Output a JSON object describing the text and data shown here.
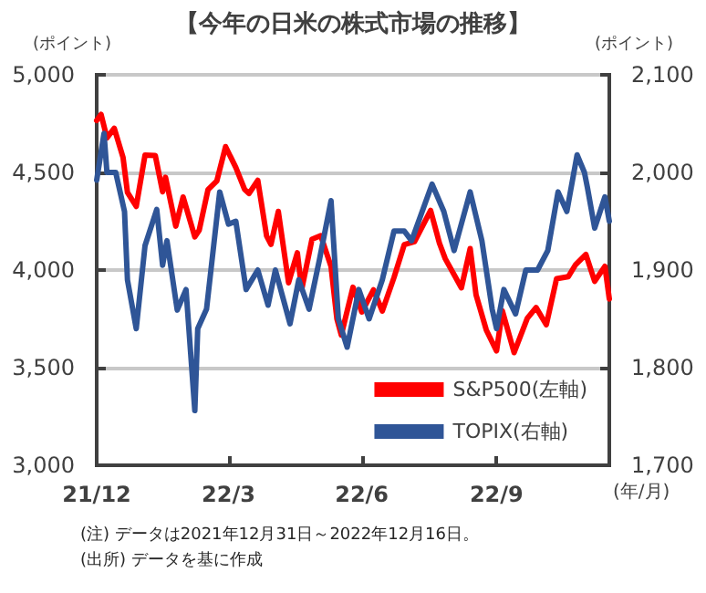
{
  "chart_data": {
    "type": "line",
    "title": "【今年の日米の株式市場の推移】",
    "ylabel": "(ポイント)",
    "y2label": "(ポイント)",
    "xlabel": "(年/月)",
    "annotations": [
      "(注) データは2021年12月31日～2022年12月16日。",
      "(出所) データを基に作成"
    ],
    "xlim": [
      "2021-12-31",
      "2022-12-16"
    ],
    "xticks": [
      {
        "value": "2021-12-31",
        "label": "21/12"
      },
      {
        "value": "2022-03-31",
        "label": "22/3"
      },
      {
        "value": "2022-06-30",
        "label": "22/6"
      },
      {
        "value": "2022-09-30",
        "label": "22/9"
      }
    ],
    "ylim": [
      3000,
      5000
    ],
    "yticks": [
      {
        "value": 3000,
        "label": "3,000"
      },
      {
        "value": 3500,
        "label": "3,500"
      },
      {
        "value": 4000,
        "label": "4,000"
      },
      {
        "value": 4500,
        "label": "4,500"
      },
      {
        "value": 5000,
        "label": "5,000"
      }
    ],
    "y2lim": [
      1700,
      2100
    ],
    "y2ticks": [
      {
        "value": 1700,
        "label": "1,700"
      },
      {
        "value": 1800,
        "label": "1,800"
      },
      {
        "value": 1900,
        "label": "1,900"
      },
      {
        "value": 2000,
        "label": "2,000"
      },
      {
        "value": 2100,
        "label": "2,100"
      }
    ],
    "grid": "y",
    "legend": "bottom right",
    "marker": "none",
    "line_style": "solid",
    "series": [
      {
        "name": "S&P500(左軸)",
        "color": "#ff0000",
        "x": [
          "2021-12-31",
          "2022-01-03",
          "2022-01-07",
          "2022-01-12",
          "2022-01-18",
          "2022-01-21",
          "2022-01-27",
          "2022-02-02",
          "2022-02-09",
          "2022-02-14",
          "2022-02-16",
          "2022-02-23",
          "2022-02-28",
          "2022-03-08",
          "2022-03-11",
          "2022-03-17",
          "2022-03-23",
          "2022-03-29",
          "2022-04-05",
          "2022-04-11",
          "2022-04-14",
          "2022-04-20",
          "2022-04-26",
          "2022-04-29",
          "2022-05-04",
          "2022-05-11",
          "2022-05-17",
          "2022-05-20",
          "2022-05-27",
          "2022-06-02",
          "2022-06-09",
          "2022-06-13",
          "2022-06-16",
          "2022-06-24",
          "2022-06-30",
          "2022-07-08",
          "2022-07-14",
          "2022-07-22",
          "2022-07-29",
          "2022-08-05",
          "2022-08-16",
          "2022-08-22",
          "2022-08-26",
          "2022-09-06",
          "2022-09-12",
          "2022-09-16",
          "2022-09-23",
          "2022-09-30",
          "2022-10-04",
          "2022-10-12",
          "2022-10-21",
          "2022-10-27",
          "2022-11-03",
          "2022-11-10",
          "2022-11-18",
          "2022-11-23",
          "2022-11-30",
          "2022-12-06",
          "2022-12-13",
          "2022-12-16"
        ],
        "values": [
          4766,
          4797,
          4677,
          4726,
          4577,
          4398,
          4326,
          4589,
          4587,
          4401,
          4475,
          4225,
          4374,
          4170,
          4204,
          4412,
          4456,
          4632,
          4525,
          4413,
          4392,
          4459,
          4175,
          4132,
          4300,
          3935,
          4088,
          3901,
          4158,
          4176,
          4018,
          3750,
          3667,
          3912,
          3785,
          3899,
          3790,
          3962,
          4130,
          4145,
          4305,
          4138,
          4058,
          3909,
          4110,
          3873,
          3693,
          3586,
          3791,
          3577,
          3753,
          3808,
          3720,
          3956,
          3966,
          4028,
          4080,
          3942,
          4019,
          3852
        ]
      },
      {
        "name": "TOPIX(右軸)",
        "color": "#2f5597",
        "axis": "y2",
        "x": [
          "2021-12-31",
          "2022-01-05",
          "2022-01-07",
          "2022-01-13",
          "2022-01-19",
          "2022-01-21",
          "2022-01-27",
          "2022-02-02",
          "2022-02-10",
          "2022-02-14",
          "2022-02-17",
          "2022-02-24",
          "2022-03-02",
          "2022-03-08",
          "2022-03-10",
          "2022-03-16",
          "2022-03-25",
          "2022-03-31",
          "2022-04-05",
          "2022-04-12",
          "2022-04-20",
          "2022-04-27",
          "2022-05-02",
          "2022-05-12",
          "2022-05-18",
          "2022-05-25",
          "2022-06-01",
          "2022-06-09",
          "2022-06-14",
          "2022-06-20",
          "2022-06-28",
          "2022-07-05",
          "2022-07-14",
          "2022-07-22",
          "2022-07-29",
          "2022-08-03",
          "2022-08-17",
          "2022-08-25",
          "2022-09-01",
          "2022-09-12",
          "2022-09-20",
          "2022-09-27",
          "2022-09-30",
          "2022-10-05",
          "2022-10-13",
          "2022-10-20",
          "2022-10-28",
          "2022-11-04",
          "2022-11-11",
          "2022-11-17",
          "2022-11-24",
          "2022-11-29",
          "2022-12-01",
          "2022-12-06",
          "2022-12-13",
          "2022-12-16"
        ],
        "values": [
          1992,
          2040,
          2000,
          2000,
          1960,
          1890,
          1840,
          1925,
          1962,
          1905,
          1930,
          1859,
          1880,
          1756,
          1840,
          1860,
          1980,
          1947,
          1950,
          1880,
          1900,
          1864,
          1900,
          1845,
          1890,
          1860,
          1910,
          1971,
          1850,
          1821,
          1880,
          1850,
          1890,
          1940,
          1940,
          1930,
          1988,
          1960,
          1920,
          1980,
          1930,
          1860,
          1840,
          1880,
          1855,
          1900,
          1900,
          1920,
          1980,
          1960,
          2018,
          2000,
          1985,
          1943,
          1975,
          1950
        ]
      }
    ]
  }
}
